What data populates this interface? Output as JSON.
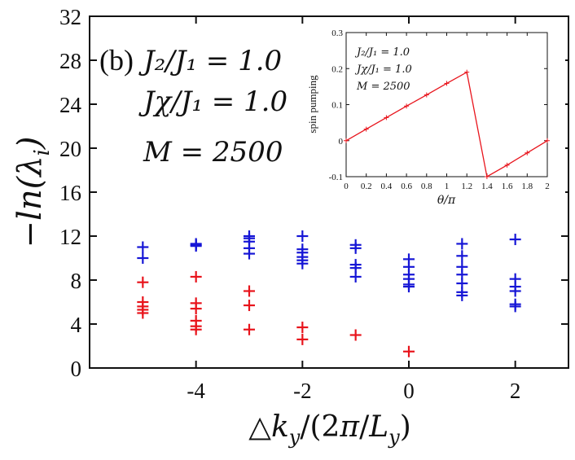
{
  "panel_label": "(b)",
  "main_annotations": [
    "J₂/J₁ = 1.0",
    "Jχ/J₁ = 1.0",
    "M = 2500"
  ],
  "colors": {
    "upper_series": "#1616d6",
    "lower_series": "#e8141c",
    "inset_line": "#e8141c",
    "axis": "#111111"
  },
  "chart_data": [
    {
      "type": "scatter",
      "panel": "main",
      "marker": "+",
      "xlabel": "△k_y/(2π/L_y)",
      "ylabel": "−ln(λ_i)",
      "xlim": [
        -6.0,
        3.0
      ],
      "ylim": [
        0,
        32
      ],
      "xticks": [
        -4,
        -2,
        0,
        2
      ],
      "yticks": [
        0,
        4,
        8,
        12,
        16,
        20,
        24,
        28,
        32
      ],
      "series": [
        {
          "name": "upper",
          "color": "#1616d6",
          "points": [
            [
              -5,
              11.0
            ],
            [
              -5,
              10.0
            ],
            [
              -4,
              11.3
            ],
            [
              -4,
              11.2
            ],
            [
              -4,
              11.1
            ],
            [
              -3,
              12.0
            ],
            [
              -3,
              11.8
            ],
            [
              -3,
              11.5
            ],
            [
              -3,
              10.9
            ],
            [
              -3,
              10.4
            ],
            [
              -2,
              12.0
            ],
            [
              -2,
              10.8
            ],
            [
              -2,
              10.5
            ],
            [
              -2,
              10.1
            ],
            [
              -2,
              9.8
            ],
            [
              -2,
              9.5
            ],
            [
              -1,
              11.2
            ],
            [
              -1,
              10.9
            ],
            [
              -1,
              9.4
            ],
            [
              -1,
              9.1
            ],
            [
              -1,
              8.3
            ],
            [
              0,
              9.9
            ],
            [
              0,
              9.2
            ],
            [
              0,
              8.5
            ],
            [
              0,
              8.1
            ],
            [
              0,
              7.6
            ],
            [
              0,
              7.4
            ],
            [
              1,
              11.3
            ],
            [
              1,
              10.2
            ],
            [
              1,
              9.2
            ],
            [
              1,
              8.5
            ],
            [
              1,
              7.7
            ],
            [
              1,
              6.9
            ],
            [
              1,
              6.6
            ],
            [
              2,
              11.7
            ],
            [
              2,
              8.1
            ],
            [
              2,
              7.4
            ],
            [
              2,
              7.0
            ],
            [
              2,
              5.8
            ],
            [
              2,
              5.6
            ]
          ]
        },
        {
          "name": "lower",
          "color": "#e8141c",
          "points": [
            [
              -5,
              7.8
            ],
            [
              -5,
              6.0
            ],
            [
              -5,
              5.6
            ],
            [
              -5,
              5.3
            ],
            [
              -5,
              5.0
            ],
            [
              -4,
              8.3
            ],
            [
              -4,
              5.9
            ],
            [
              -4,
              5.4
            ],
            [
              -4,
              4.3
            ],
            [
              -4,
              3.8
            ],
            [
              -4,
              3.5
            ],
            [
              -3,
              7.0
            ],
            [
              -3,
              5.7
            ],
            [
              -3,
              3.5
            ],
            [
              -2,
              3.7
            ],
            [
              -2,
              2.6
            ],
            [
              -1,
              3.0
            ],
            [
              0,
              1.5
            ]
          ]
        }
      ]
    },
    {
      "type": "line",
      "panel": "inset",
      "marker": "+",
      "xlabel": "θ/π",
      "ylabel": "spin pumping",
      "xlim": [
        0,
        2
      ],
      "ylim": [
        -0.1,
        0.3
      ],
      "xticks": [
        0,
        0.2,
        0.4,
        0.6,
        0.8,
        1,
        1.2,
        1.4,
        1.6,
        1.8,
        2
      ],
      "yticks": [
        -0.1,
        0,
        0.1,
        0.2,
        0.3
      ],
      "annotations": [
        "J₂/J₁ = 1.0",
        "Jχ/J₁ = 1.0",
        "M = 2500"
      ],
      "x": [
        0,
        0.2,
        0.4,
        0.6,
        0.8,
        1.0,
        1.2,
        1.4,
        1.6,
        1.8,
        2.0
      ],
      "y": [
        0.0,
        0.032,
        0.064,
        0.096,
        0.127,
        0.159,
        0.19,
        -0.1,
        -0.068,
        -0.034,
        0.0
      ]
    }
  ]
}
